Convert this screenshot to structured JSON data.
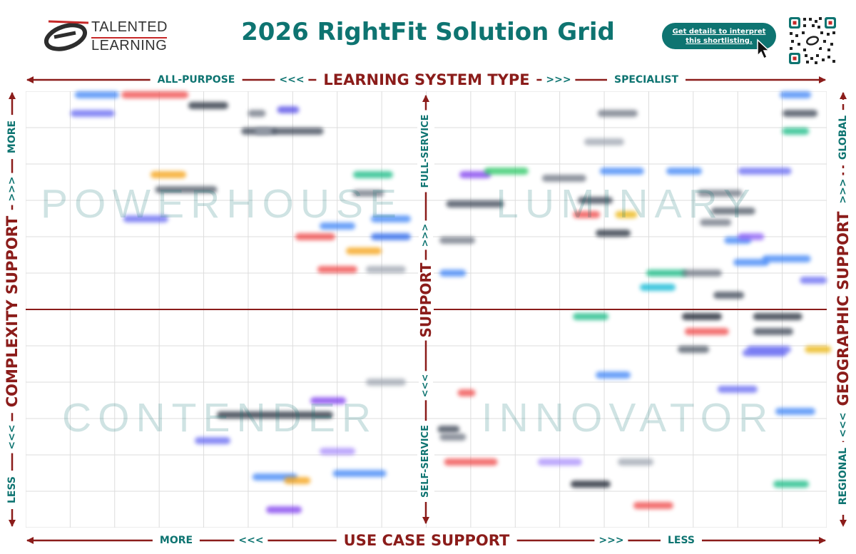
{
  "header": {
    "logo_line1": "TALENTED",
    "logo_line2": "LEARNING",
    "title": "2026 RightFit Solution Grid",
    "details_line1": "Get details to interpret",
    "details_line2": "this shortlisting."
  },
  "colors": {
    "teal": "#0e7471",
    "maroon": "#8b1c1a",
    "grid": "#dddddd"
  },
  "chart_data": {
    "type": "scatter",
    "title": "2026 RightFit Solution Grid",
    "top_axis": {
      "title": "LEARNING SYSTEM TYPE",
      "left": "ALL-PURPOSE",
      "right": "SPECIALIST",
      "left_arrows": "<<<",
      "right_arrows": ">>>"
    },
    "bottom_axis": {
      "title": "USE CASE SUPPORT",
      "left": "MORE",
      "right": "LESS",
      "left_arrows": "<<<",
      "right_arrows": ">>>"
    },
    "left_axis": {
      "title": "COMPLEXITY SUPPORT",
      "top": "MORE",
      "bottom": "LESS",
      "top_arrows": ">>>",
      "bottom_arrows": "<<<"
    },
    "right_axis": {
      "title": "GEOGRAPHIC SUPPORT",
      "top": "GLOBAL",
      "bottom": "REGIONAL",
      "top_arrows": ">>>",
      "bottom_arrows": "<<<"
    },
    "center_axis": {
      "title": "SUPPORT",
      "top": "FULL-SERVICE",
      "bottom": "SELF-SERVICE",
      "top_arrows": ">>>",
      "bottom_arrows": "<<<"
    },
    "quadrants": {
      "top_left": "POWERHOUSE",
      "top_right": "LUMINARY",
      "bottom_left": "CONTENDER",
      "bottom_right": "INNOVATOR"
    },
    "grid": {
      "columns": 18,
      "rows": 12
    },
    "xlim": [
      0,
      18
    ],
    "ylim": [
      0,
      12
    ],
    "vendor_points": [
      {
        "x": 1.6,
        "y": 11.9,
        "w": 1.0,
        "color": "#3b82f6"
      },
      {
        "x": 2.9,
        "y": 11.9,
        "w": 1.5,
        "color": "#ef4444"
      },
      {
        "x": 1.5,
        "y": 11.4,
        "w": 1.0,
        "color": "#6366f1"
      },
      {
        "x": 4.1,
        "y": 11.6,
        "w": 0.9,
        "color": "#1f2937"
      },
      {
        "x": 5.2,
        "y": 10.9,
        "w": 0.7,
        "color": "#374151"
      },
      {
        "x": 5.9,
        "y": 11.5,
        "w": 0.5,
        "color": "#4f46e5"
      },
      {
        "x": 5.2,
        "y": 11.4,
        "w": 0.4,
        "color": "#6b7280"
      },
      {
        "x": 5.4,
        "y": 10.9,
        "w": 0.5,
        "color": "#9ca3af"
      },
      {
        "x": 6.1,
        "y": 10.9,
        "w": 1.2,
        "color": "#374151"
      },
      {
        "x": 3.2,
        "y": 9.7,
        "w": 0.8,
        "color": "#f59e0b"
      },
      {
        "x": 3.6,
        "y": 9.3,
        "w": 1.4,
        "color": "#4b5563"
      },
      {
        "x": 2.7,
        "y": 8.5,
        "w": 1.0,
        "color": "#6366f1"
      },
      {
        "x": 7.8,
        "y": 9.7,
        "w": 0.9,
        "color": "#10b981"
      },
      {
        "x": 7.7,
        "y": 9.2,
        "w": 0.7,
        "color": "#6b7280"
      },
      {
        "x": 6.5,
        "y": 8.0,
        "w": 0.9,
        "color": "#ef4444"
      },
      {
        "x": 7.0,
        "y": 8.3,
        "w": 0.8,
        "color": "#3b82f6"
      },
      {
        "x": 8.2,
        "y": 8.0,
        "w": 0.9,
        "color": "#2563eb"
      },
      {
        "x": 8.2,
        "y": 8.5,
        "w": 0.9,
        "color": "#3b82f6"
      },
      {
        "x": 7.6,
        "y": 7.6,
        "w": 0.8,
        "color": "#f59e0b"
      },
      {
        "x": 7.0,
        "y": 7.1,
        "w": 0.9,
        "color": "#ef4444"
      },
      {
        "x": 8.1,
        "y": 7.1,
        "w": 0.9,
        "color": "#9ca3af"
      },
      {
        "x": 8.1,
        "y": 4.0,
        "w": 0.9,
        "color": "#9ca3af"
      },
      {
        "x": 6.8,
        "y": 3.5,
        "w": 0.8,
        "color": "#7c3aed"
      },
      {
        "x": 5.6,
        "y": 3.1,
        "w": 2.6,
        "color": "#1f2937"
      },
      {
        "x": 4.2,
        "y": 2.4,
        "w": 0.8,
        "color": "#6366f1"
      },
      {
        "x": 7.0,
        "y": 2.1,
        "w": 0.8,
        "color": "#a78bfa"
      },
      {
        "x": 5.6,
        "y": 1.4,
        "w": 1.0,
        "color": "#3b82f6"
      },
      {
        "x": 7.5,
        "y": 1.5,
        "w": 1.2,
        "color": "#3b82f6"
      },
      {
        "x": 5.8,
        "y": 0.5,
        "w": 0.8,
        "color": "#7c3aed"
      },
      {
        "x": 6.1,
        "y": 1.3,
        "w": 0.6,
        "color": "#f59e0b"
      },
      {
        "x": 9.9,
        "y": 3.7,
        "w": 0.4,
        "color": "#ef4444"
      },
      {
        "x": 9.5,
        "y": 2.7,
        "w": 0.5,
        "color": "#374151"
      },
      {
        "x": 9.6,
        "y": 2.5,
        "w": 0.6,
        "color": "#6b7280"
      },
      {
        "x": 10.0,
        "y": 1.8,
        "w": 1.2,
        "color": "#ef4444"
      },
      {
        "x": 12.0,
        "y": 1.8,
        "w": 1.0,
        "color": "#a78bfa"
      },
      {
        "x": 12.7,
        "y": 1.2,
        "w": 0.9,
        "color": "#111827"
      },
      {
        "x": 13.7,
        "y": 1.8,
        "w": 0.8,
        "color": "#9ca3af"
      },
      {
        "x": 14.1,
        "y": 0.6,
        "w": 0.9,
        "color": "#ef4444"
      },
      {
        "x": 17.2,
        "y": 1.2,
        "w": 0.8,
        "color": "#10b981"
      },
      {
        "x": 17.3,
        "y": 3.2,
        "w": 0.9,
        "color": "#3b82f6"
      },
      {
        "x": 16.6,
        "y": 4.8,
        "w": 1.0,
        "color": "#6366f1"
      },
      {
        "x": 16.0,
        "y": 3.8,
        "w": 0.9,
        "color": "#6366f1"
      },
      {
        "x": 17.8,
        "y": 4.9,
        "w": 0.6,
        "color": "#eab308"
      },
      {
        "x": 16.7,
        "y": 4.9,
        "w": 1.0,
        "color": "#6366f1"
      },
      {
        "x": 16.8,
        "y": 5.4,
        "w": 0.9,
        "color": "#374151"
      },
      {
        "x": 16.9,
        "y": 5.8,
        "w": 1.1,
        "color": "#1f2937"
      },
      {
        "x": 15.2,
        "y": 5.8,
        "w": 0.9,
        "color": "#111827"
      },
      {
        "x": 15.3,
        "y": 5.4,
        "w": 1.0,
        "color": "#ef4444"
      },
      {
        "x": 15.0,
        "y": 4.9,
        "w": 0.7,
        "color": "#4b5563"
      },
      {
        "x": 13.2,
        "y": 4.2,
        "w": 0.8,
        "color": "#3b82f6"
      },
      {
        "x": 12.7,
        "y": 5.8,
        "w": 0.8,
        "color": "#10b981"
      },
      {
        "x": 10.1,
        "y": 8.9,
        "w": 1.3,
        "color": "#374151"
      },
      {
        "x": 9.7,
        "y": 7.9,
        "w": 0.8,
        "color": "#6b7280"
      },
      {
        "x": 9.6,
        "y": 7.0,
        "w": 0.6,
        "color": "#3b82f6"
      },
      {
        "x": 10.1,
        "y": 9.7,
        "w": 0.7,
        "color": "#7c3aed"
      },
      {
        "x": 10.8,
        "y": 9.8,
        "w": 1.0,
        "color": "#22c55e"
      },
      {
        "x": 12.1,
        "y": 9.6,
        "w": 1.0,
        "color": "#6b7280"
      },
      {
        "x": 13.4,
        "y": 9.8,
        "w": 1.0,
        "color": "#3b82f6"
      },
      {
        "x": 14.8,
        "y": 9.8,
        "w": 0.8,
        "color": "#3b82f6"
      },
      {
        "x": 15.6,
        "y": 9.2,
        "w": 1.0,
        "color": "#6b7280"
      },
      {
        "x": 16.6,
        "y": 9.8,
        "w": 1.2,
        "color": "#6366f1"
      },
      {
        "x": 12.8,
        "y": 9.0,
        "w": 0.8,
        "color": "#374151"
      },
      {
        "x": 12.6,
        "y": 8.6,
        "w": 0.6,
        "color": "#ef4444"
      },
      {
        "x": 13.5,
        "y": 8.6,
        "w": 0.5,
        "color": "#eab308"
      },
      {
        "x": 13.2,
        "y": 8.1,
        "w": 0.8,
        "color": "#1f2937"
      },
      {
        "x": 15.9,
        "y": 8.7,
        "w": 1.0,
        "color": "#4b5563"
      },
      {
        "x": 15.5,
        "y": 8.4,
        "w": 0.7,
        "color": "#6b7280"
      },
      {
        "x": 16.0,
        "y": 7.9,
        "w": 0.6,
        "color": "#3b82f6"
      },
      {
        "x": 16.3,
        "y": 8.0,
        "w": 0.6,
        "color": "#8b5cf6"
      },
      {
        "x": 16.3,
        "y": 7.3,
        "w": 0.8,
        "color": "#3b82f6"
      },
      {
        "x": 17.1,
        "y": 7.4,
        "w": 1.1,
        "color": "#3b82f6"
      },
      {
        "x": 17.7,
        "y": 6.8,
        "w": 0.6,
        "color": "#6366f1"
      },
      {
        "x": 14.4,
        "y": 7.0,
        "w": 0.9,
        "color": "#10b981"
      },
      {
        "x": 15.2,
        "y": 7.0,
        "w": 0.9,
        "color": "#6b7280"
      },
      {
        "x": 15.8,
        "y": 6.4,
        "w": 0.7,
        "color": "#374151"
      },
      {
        "x": 14.2,
        "y": 6.6,
        "w": 0.8,
        "color": "#06b6d4"
      },
      {
        "x": 13.3,
        "y": 11.4,
        "w": 0.9,
        "color": "#6b7280"
      },
      {
        "x": 13.0,
        "y": 10.6,
        "w": 0.9,
        "color": "#9ca3af"
      },
      {
        "x": 17.3,
        "y": 11.9,
        "w": 0.7,
        "color": "#3b82f6"
      },
      {
        "x": 17.4,
        "y": 11.4,
        "w": 0.8,
        "color": "#374151"
      },
      {
        "x": 17.3,
        "y": 10.9,
        "w": 0.6,
        "color": "#10b981"
      }
    ]
  }
}
